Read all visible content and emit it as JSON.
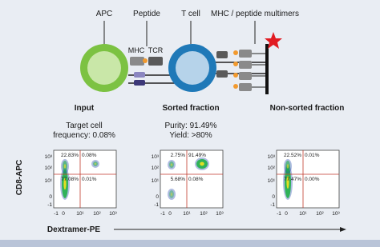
{
  "diagram": {
    "labels": {
      "apc": "APC",
      "peptide": "Peptide",
      "t_cell": "T cell",
      "multimers": "MHC / peptide multimers",
      "mhc": "MHC",
      "tcr": "TCR"
    }
  },
  "panels": [
    {
      "title": "Input",
      "caption": [
        "Target cell",
        "frequency: 0.08%"
      ],
      "quadrants": {
        "top_left": "22.83%",
        "top_right": "0.08%",
        "bottom_left": "77.08%",
        "bottom_right": "0.01%"
      }
    },
    {
      "title": "Sorted fraction",
      "caption": [
        "Purity: 91.49%",
        "Yield: >80%"
      ],
      "quadrants": {
        "top_left": "2.75%",
        "top_right": "91.49%",
        "bottom_left": "5.68%",
        "bottom_right": "0.08%"
      }
    },
    {
      "title": "Non-sorted fraction",
      "caption": [],
      "quadrants": {
        "top_left": "22.52%",
        "top_right": "0.01%",
        "bottom_left": "77.47%",
        "bottom_right": "0.00%"
      }
    }
  ],
  "axes": {
    "y_label": "CD8-APC",
    "x_label": "Dextramer-PE",
    "x_ticks": [
      "-1",
      "0",
      "10¹",
      "10²",
      "10³"
    ],
    "y_ticks": [
      "10³",
      "10²",
      "10¹",
      "0",
      "-1"
    ]
  }
}
